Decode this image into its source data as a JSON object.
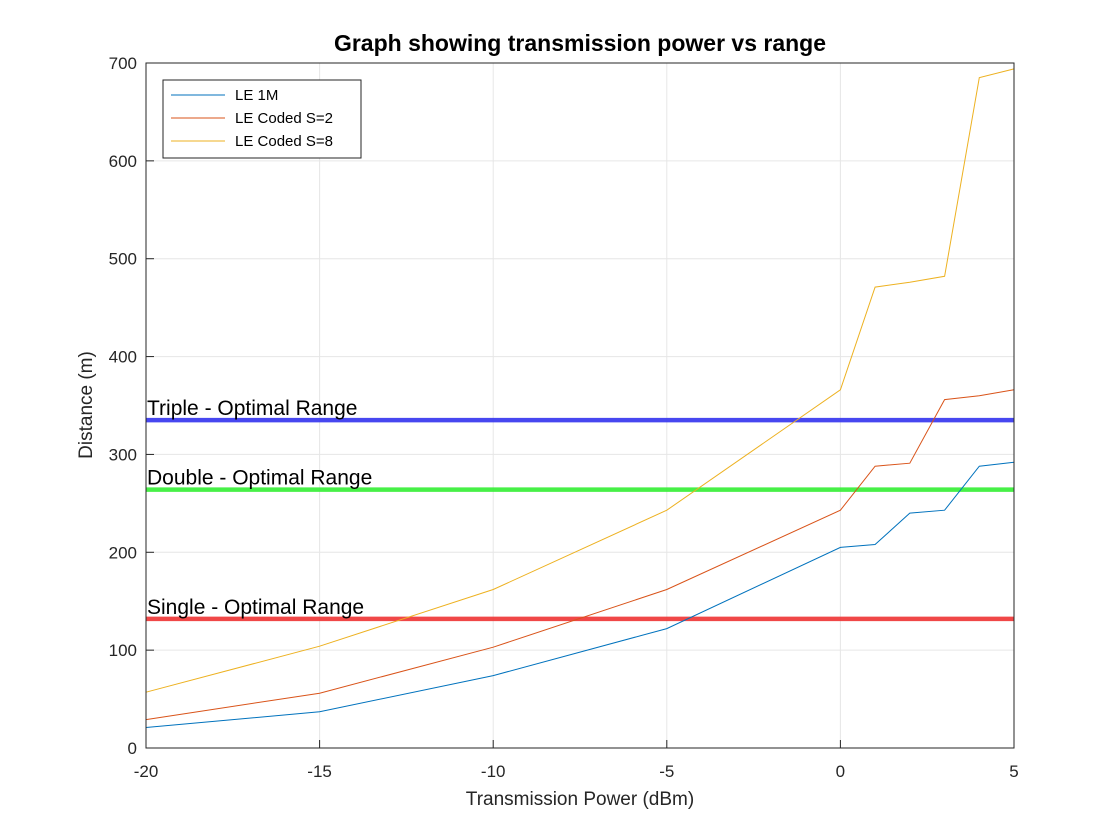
{
  "chart_data": {
    "type": "line",
    "title": "Graph showing transmission power vs range",
    "xlabel": "Transmission Power (dBm)",
    "ylabel": "Distance (m)",
    "xlim": [
      -20,
      5
    ],
    "ylim": [
      0,
      700
    ],
    "xticks": [
      -20,
      -15,
      -10,
      -5,
      0,
      5
    ],
    "yticks": [
      0,
      100,
      200,
      300,
      400,
      500,
      600,
      700
    ],
    "grid": true,
    "legend_position": "top-left",
    "x": [
      -20,
      -15,
      -10,
      -5,
      0,
      1,
      2,
      3,
      4,
      5
    ],
    "series": [
      {
        "name": "LE 1M",
        "color": "#0072BD",
        "values": [
          21,
          37,
          74,
          122,
          205,
          208,
          240,
          243,
          288,
          292
        ]
      },
      {
        "name": "LE Coded S=2",
        "color": "#D95319",
        "values": [
          29,
          56,
          103,
          162,
          243,
          288,
          291,
          356,
          360,
          366
        ]
      },
      {
        "name": "LE Coded S=8",
        "color": "#EDB120",
        "values": [
          57,
          104,
          162,
          243,
          366,
          471,
          476,
          482,
          685,
          694
        ]
      }
    ],
    "reference_lines": [
      {
        "label": "Triple - Optimal Range",
        "y": 335,
        "color": "#3333ee"
      },
      {
        "label": "Double - Optimal Range",
        "y": 264,
        "color": "#33ee33"
      },
      {
        "label": "Single - Optimal Range",
        "y": 132,
        "color": "#ee3333"
      }
    ]
  }
}
